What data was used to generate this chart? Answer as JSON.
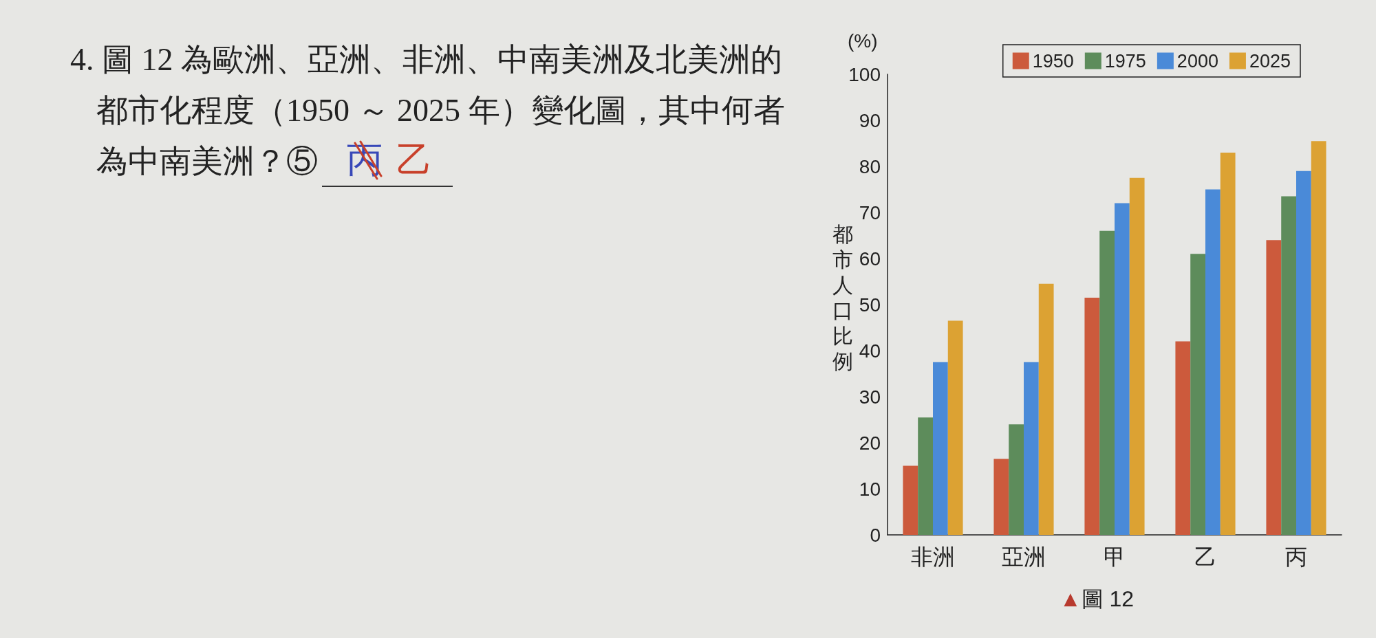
{
  "chart_data": {
    "type": "bar",
    "categories": [
      "非洲",
      "亞洲",
      "甲",
      "乙",
      "丙"
    ],
    "series": [
      {
        "name": "1950",
        "color": "#cc5a3c",
        "values": [
          15,
          16.5,
          51.5,
          42,
          64
        ]
      },
      {
        "name": "1975",
        "color": "#5d8c5b",
        "values": [
          25.5,
          24,
          66,
          61,
          73.5
        ]
      },
      {
        "name": "2000",
        "color": "#4a8ad8",
        "values": [
          37.5,
          37.5,
          72,
          75,
          79
        ]
      },
      {
        "name": "2025",
        "color": "#dca233",
        "values": [
          46.5,
          54.5,
          77.5,
          83,
          85.5
        ]
      }
    ],
    "ylabel": "都市人口比例",
    "ylim": [
      0,
      100
    ],
    "yticks": [
      0,
      10,
      20,
      30,
      40,
      50,
      60,
      70,
      80,
      90,
      100
    ],
    "grid": false,
    "legend": "top right",
    "annotations": [
      "4. 圖 12 為歐洲、亞洲、非洲、中南美洲及北美洲的",
      "都市化程度（1950 ～ 2025 年）變化圖，其中何者",
      "為中南美洲？⑤",
      "丙",
      "乙",
      "(%)",
      "▲圖 12"
    ]
  }
}
